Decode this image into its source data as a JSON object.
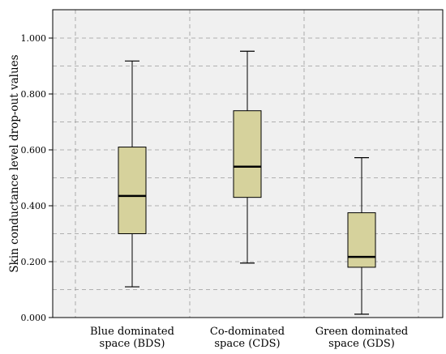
{
  "chart_data": {
    "type": "boxplot",
    "title": "",
    "xlabel": "",
    "ylabel": "Skin conductance level drop-out values",
    "ylim": [
      0,
      1.1
    ],
    "yticks": [
      "0.000",
      "0.200",
      "0.400",
      "0.600",
      "0.800",
      "1.000"
    ],
    "grid": true,
    "colors": {
      "box_fill": "#d6d29c",
      "plot_bg": "#f0f0f0",
      "grid": "#9a9a9a"
    },
    "categories": [
      {
        "label_line1": "Blue dominated",
        "label_line2": "space (BDS)"
      },
      {
        "label_line1": "Co-dominated",
        "label_line2": "space (CDS)"
      },
      {
        "label_line1": "Green dominated",
        "label_line2": "space (GDS)"
      }
    ],
    "boxes": [
      {
        "min": 0.11,
        "q1": 0.3,
        "median": 0.435,
        "q3": 0.61,
        "max": 0.918
      },
      {
        "min": 0.195,
        "q1": 0.43,
        "median": 0.54,
        "q3": 0.74,
        "max": 0.953
      },
      {
        "min": 0.012,
        "q1": 0.18,
        "median": 0.217,
        "q3": 0.375,
        "max": 0.572
      }
    ]
  }
}
